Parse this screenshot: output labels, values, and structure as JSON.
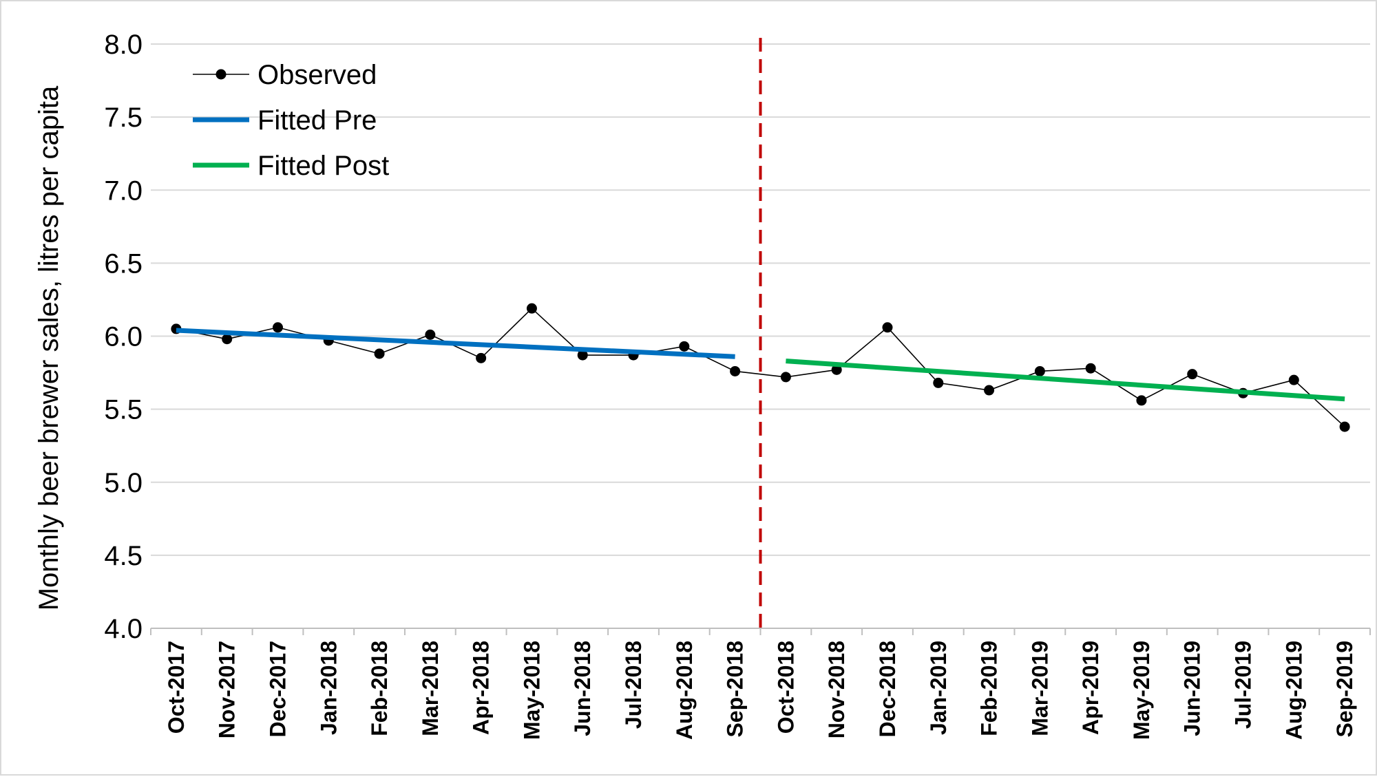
{
  "chart_data": {
    "type": "line",
    "title": "",
    "xlabel": "",
    "ylabel": "Monthly beer brewer sales, litres per capita",
    "ylim": [
      4.0,
      8.0
    ],
    "y_ticks": [
      "4.0",
      "4.5",
      "5.0",
      "5.5",
      "6.0",
      "6.5",
      "7.0",
      "7.5",
      "8.0"
    ],
    "grid": true,
    "legend_position": "top-left",
    "categories": [
      "Oct-2017",
      "Nov-2017",
      "Dec-2017",
      "Jan-2018",
      "Feb-2018",
      "Mar-2018",
      "Apr-2018",
      "May-2018",
      "Jun-2018",
      "Jul-2018",
      "Aug-2018",
      "Sep-2018",
      "Oct-2018",
      "Nov-2018",
      "Dec-2018",
      "Jan-2019",
      "Feb-2019",
      "Mar-2019",
      "Apr-2019",
      "May-2019",
      "Jun-2019",
      "Jul-2019",
      "Aug-2019",
      "Sep-2019"
    ],
    "series": [
      {
        "name": "Observed",
        "style": "line-marker",
        "color": "#000000",
        "values": [
          6.05,
          5.98,
          6.06,
          5.97,
          5.88,
          6.01,
          5.85,
          6.19,
          5.87,
          5.87,
          5.93,
          5.76,
          5.72,
          5.77,
          6.06,
          5.68,
          5.63,
          5.76,
          5.78,
          5.56,
          5.74,
          5.61,
          5.7,
          5.38
        ]
      },
      {
        "name": "Fitted Pre",
        "style": "thick-line",
        "color": "#0070C0",
        "x_start": 0,
        "x_end": 11,
        "y_start": 6.04,
        "y_end": 5.86
      },
      {
        "name": "Fitted Post",
        "style": "thick-line",
        "color": "#00B050",
        "x_start": 12,
        "x_end": 23,
        "y_start": 5.83,
        "y_end": 5.57
      }
    ],
    "annotations": [
      {
        "type": "vertical-dashed-line",
        "between": [
          "Sep-2018",
          "Oct-2018"
        ],
        "color": "#C00000"
      }
    ]
  }
}
